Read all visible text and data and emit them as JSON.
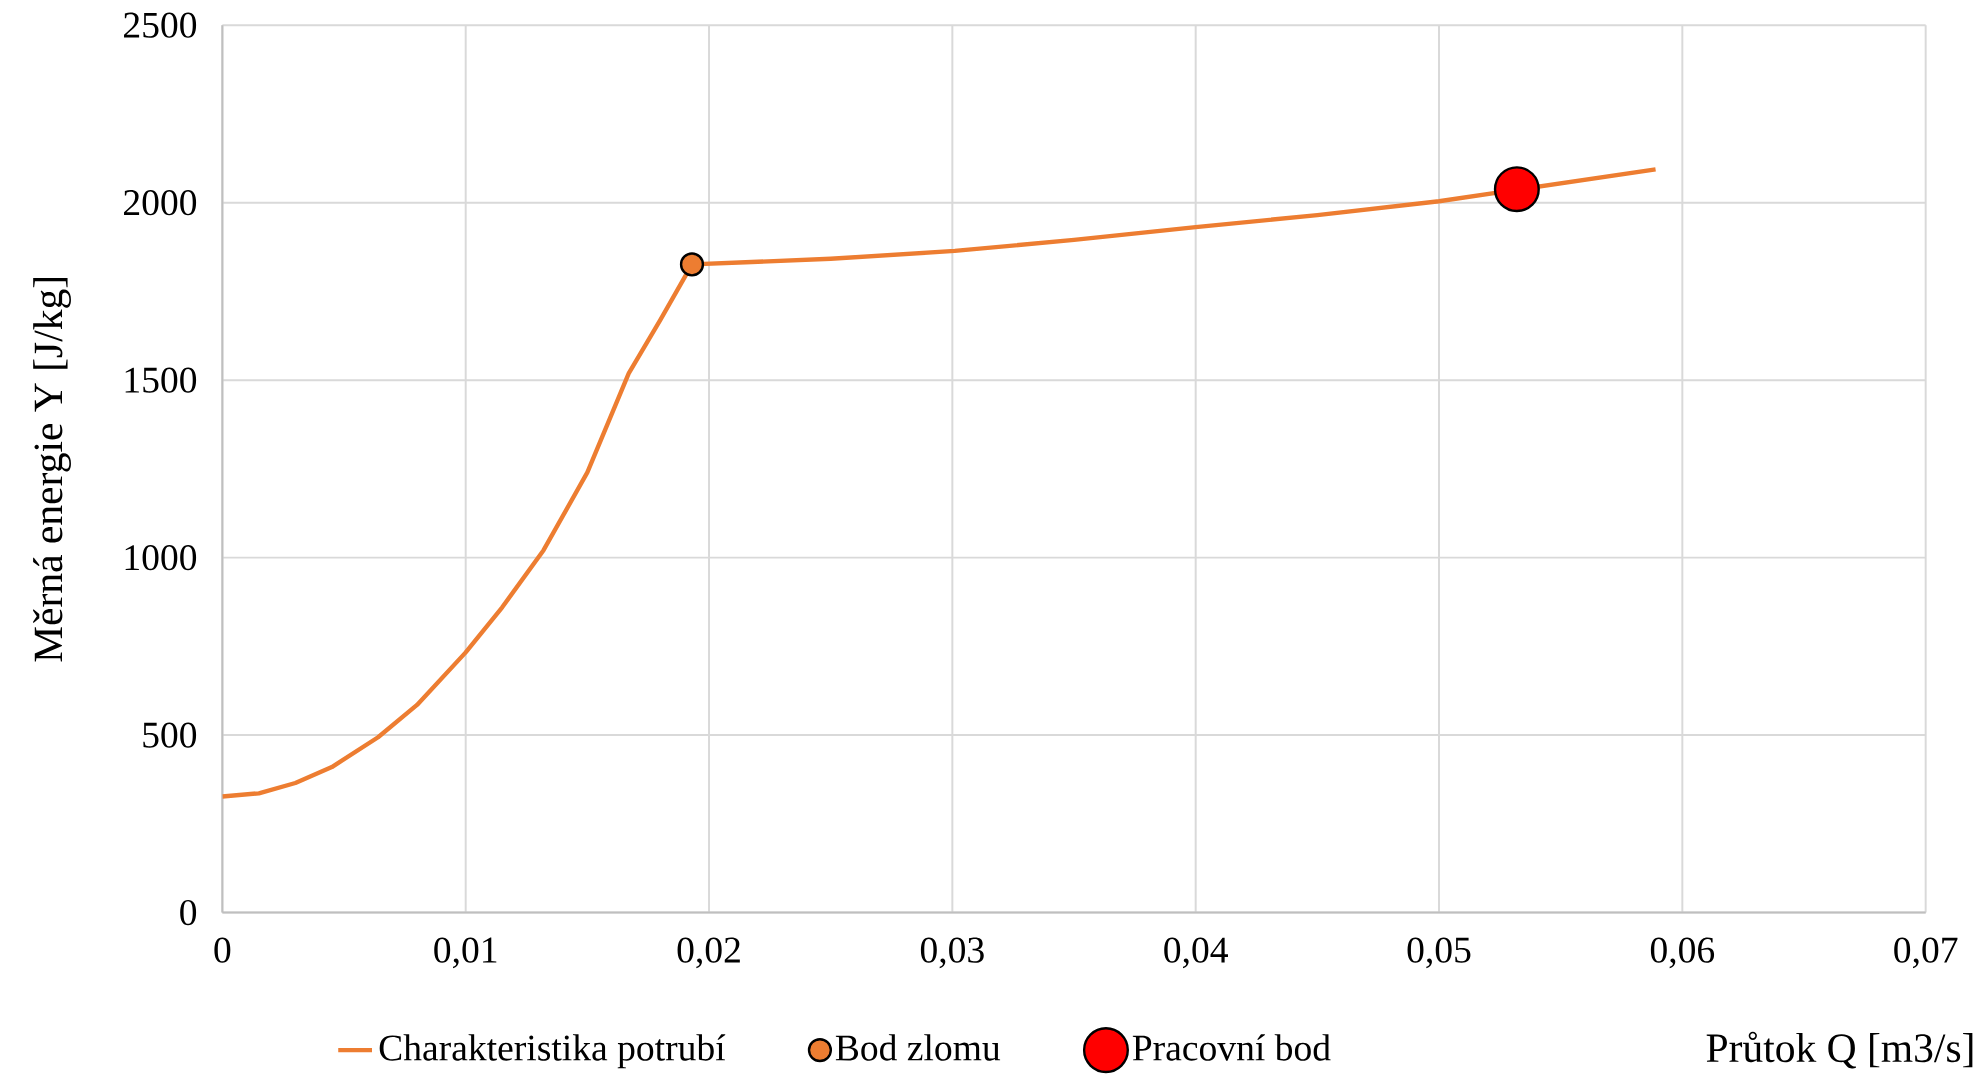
{
  "chart_data": {
    "type": "line",
    "xlabel": "Průtok Q [m3/s]",
    "ylabel": "Měrná energie Y  [J/kg]",
    "series": [
      {
        "name": "Charakteristika potrubí",
        "marker": "none",
        "color": "#ed7d31",
        "x": [
          0,
          0.0015,
          0.003,
          0.0045,
          0.0064,
          0.008,
          0.01,
          0.0115,
          0.0132,
          0.015,
          0.0167,
          0.018,
          0.0193,
          0.0215,
          0.025,
          0.0301,
          0.035,
          0.04,
          0.045,
          0.05,
          0.0589
        ],
        "values": [
          327,
          336,
          365,
          410,
          494,
          585,
          733,
          860,
          1021,
          1240,
          1519,
          1670,
          1826,
          1832,
          1842,
          1864,
          1895,
          1931,
          1965,
          2004,
          2094
        ]
      },
      {
        "name": "Bod zlomu",
        "type": "scatter",
        "marker": "circle",
        "color": "#ed7d31",
        "x": [
          0.0193
        ],
        "values": [
          1826
        ]
      },
      {
        "name": "Pracovní bod",
        "type": "scatter",
        "marker": "circle",
        "color": "#ff0000",
        "x": [
          0.0532
        ],
        "values": [
          2038
        ]
      }
    ],
    "xlim": [
      0,
      0.07
    ],
    "ylim": [
      0,
      2500
    ],
    "xticks": [
      0,
      {
        "value": 0.01,
        "label": "0,01"
      },
      {
        "value": 0.02,
        "label": "0,02"
      },
      {
        "value": 0.03,
        "label": "0,03"
      },
      {
        "value": 0.04,
        "label": "0,04"
      },
      {
        "value": 0.05,
        "label": "0,05"
      },
      {
        "value": 0.06,
        "label": "0,06"
      },
      {
        "value": 0.07,
        "label": "0,07"
      }
    ],
    "yticks": [
      0,
      500,
      1000,
      1500,
      2000,
      2500
    ],
    "grid": true,
    "legend": "bottom"
  }
}
